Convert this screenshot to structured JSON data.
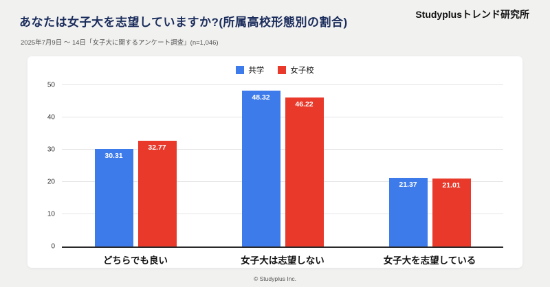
{
  "header": {
    "title": "あなたは女子大を志望していますか?(所属高校形態別の割合)",
    "brand": "Studyplusトレンド研究所",
    "subtitle": "2025年7月9日 〜 14日「女子大に関するアンケート調査」(n=1,046)"
  },
  "chart_data": {
    "type": "bar",
    "title": "あなたは女子大を志望していますか?(所属高校形態別の割合)",
    "categories": [
      "どちらでも良い",
      "女子大は志望しない",
      "女子大を志望している"
    ],
    "series": [
      {
        "name": "共学",
        "color": "#3D7BEA",
        "values": [
          30.31,
          48.32,
          21.37
        ]
      },
      {
        "name": "女子校",
        "color": "#E8392B",
        "values": [
          32.77,
          46.22,
          21.01
        ]
      }
    ],
    "ylim": [
      0,
      50
    ],
    "yticks": [
      0,
      10,
      20,
      30,
      40,
      50
    ],
    "grid": true,
    "legend_position": "top",
    "value_labels": "inside-top",
    "value_decimals": 2
  },
  "footer": {
    "copyright": "© Studyplus Inc."
  }
}
